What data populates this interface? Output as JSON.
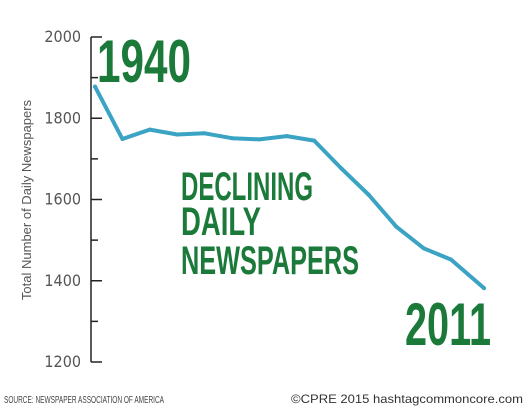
{
  "chart_data": {
    "type": "line",
    "title_lines": [
      "DECLINING",
      "DAILY",
      "NEWSPAPERS"
    ],
    "ylabel": "Total Number of Daily Newspapers",
    "ylim": [
      1200,
      2000
    ],
    "yticks": [
      1200,
      1400,
      1600,
      1800,
      2000
    ],
    "ytick_labels": [
      "1200",
      "1400",
      "1600",
      "1800",
      "2000"
    ],
    "x": [
      1940,
      1945,
      1950,
      1955,
      1960,
      1965,
      1970,
      1975,
      1980,
      1985,
      1990,
      1995,
      2000,
      2005,
      2011
    ],
    "values": [
      1878,
      1749,
      1772,
      1760,
      1763,
      1751,
      1748,
      1756,
      1745,
      1676,
      1611,
      1533,
      1480,
      1452,
      1382
    ],
    "start_label": "1940",
    "end_label": "2011",
    "line_color": "#3ba3c4",
    "axis_color": "#222222",
    "text_color": "#1b7a3a",
    "grid": false
  },
  "footer": {
    "source": "SOURCE: NEWSPAPER ASSOCIATION OF AMERICA",
    "credit": "©CPRE 2015 hashtagcommoncore.com"
  }
}
